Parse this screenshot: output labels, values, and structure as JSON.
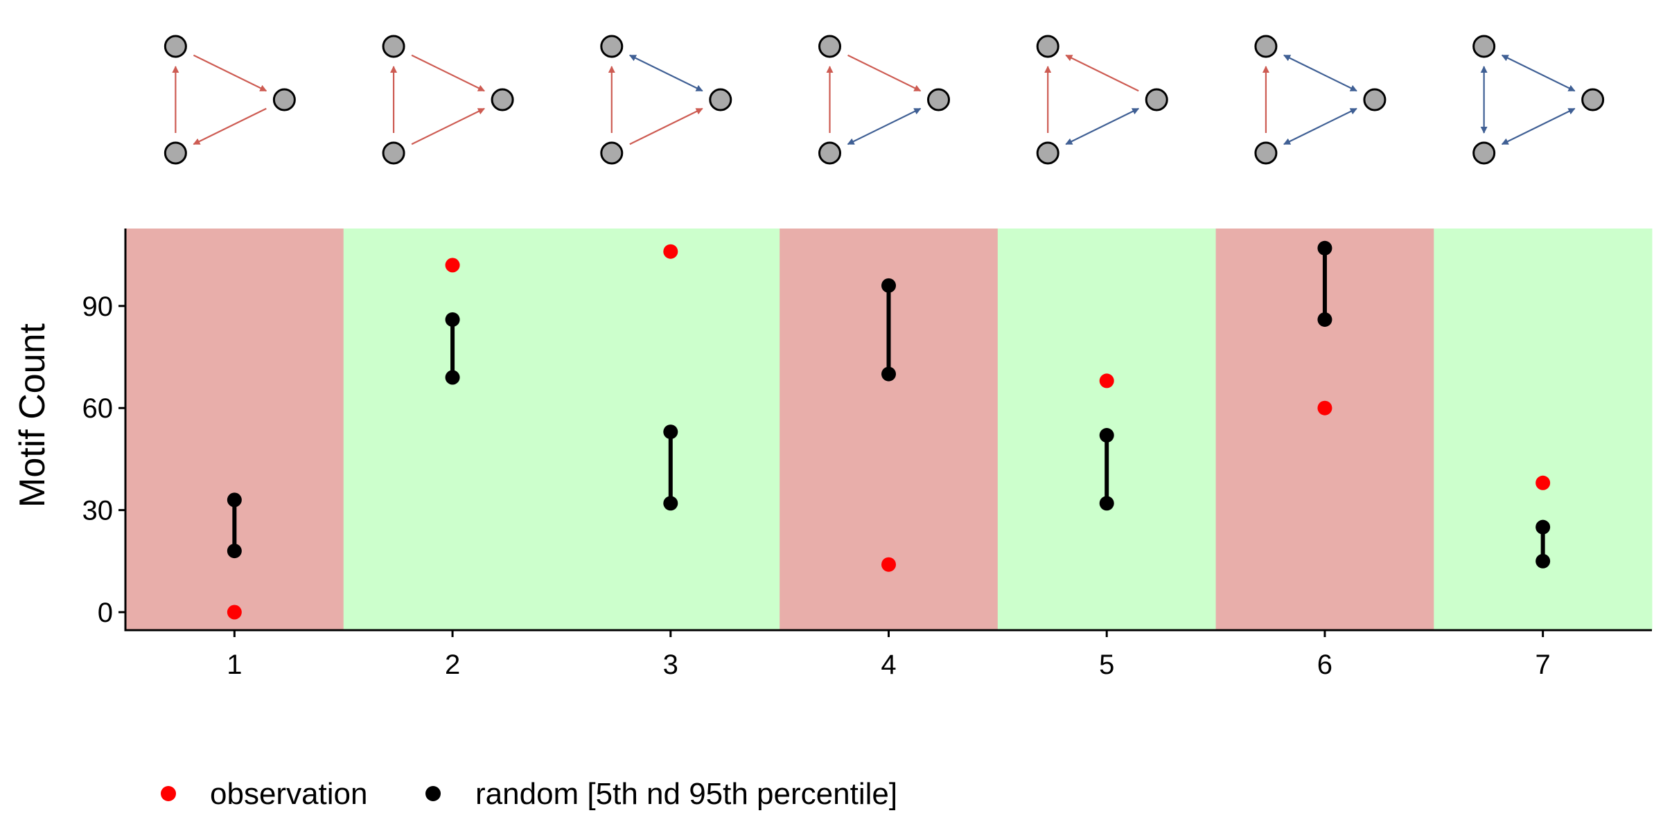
{
  "chart_data": {
    "type": "scatter",
    "title": "",
    "xlabel": "",
    "ylabel": "Motif Count",
    "categories": [
      "1",
      "2",
      "3",
      "4",
      "5",
      "6",
      "7"
    ],
    "yticks": [
      "0",
      "30",
      "60",
      "90"
    ],
    "ylim": [
      -5,
      112
    ],
    "background": [
      "under",
      "over",
      "over",
      "under",
      "over",
      "under",
      "over"
    ],
    "series": [
      {
        "name": "observation",
        "color": "#ff0000",
        "values": [
          0,
          102,
          106,
          14,
          68,
          60,
          38
        ]
      },
      {
        "name": "random [5th nd 95th percentile]",
        "color": "#000000",
        "low": [
          18,
          69,
          32,
          70,
          32,
          86,
          15
        ],
        "high": [
          33,
          86,
          53,
          96,
          52,
          107,
          25
        ]
      }
    ],
    "motifs": [
      [
        [
          "A",
          "C",
          "single"
        ],
        [
          "C",
          "B",
          "single"
        ],
        [
          "B",
          "A",
          "single"
        ]
      ],
      [
        [
          "A",
          "C",
          "single"
        ],
        [
          "B",
          "C",
          "single"
        ],
        [
          "B",
          "A",
          "single"
        ]
      ],
      [
        [
          "A",
          "C",
          "double"
        ],
        [
          "B",
          "C",
          "single"
        ],
        [
          "B",
          "A",
          "single"
        ]
      ],
      [
        [
          "A",
          "C",
          "single"
        ],
        [
          "B",
          "C",
          "double"
        ],
        [
          "B",
          "A",
          "single"
        ]
      ],
      [
        [
          "C",
          "A",
          "single"
        ],
        [
          "B",
          "C",
          "double"
        ],
        [
          "B",
          "A",
          "single"
        ]
      ],
      [
        [
          "A",
          "C",
          "double"
        ],
        [
          "B",
          "C",
          "double"
        ],
        [
          "B",
          "A",
          "single"
        ]
      ],
      [
        [
          "A",
          "C",
          "double"
        ],
        [
          "B",
          "C",
          "double"
        ],
        [
          "A",
          "B",
          "double"
        ]
      ]
    ]
  },
  "colors": {
    "under_bg": "#e8aeaa",
    "over_bg": "#ccffcc",
    "single_edge": "#cd5b52",
    "double_edge": "#3f5f94",
    "node_fill": "#aaaaaa"
  },
  "legend": {
    "observation_label": "observation",
    "random_label": "random [5th nd 95th percentile]"
  }
}
